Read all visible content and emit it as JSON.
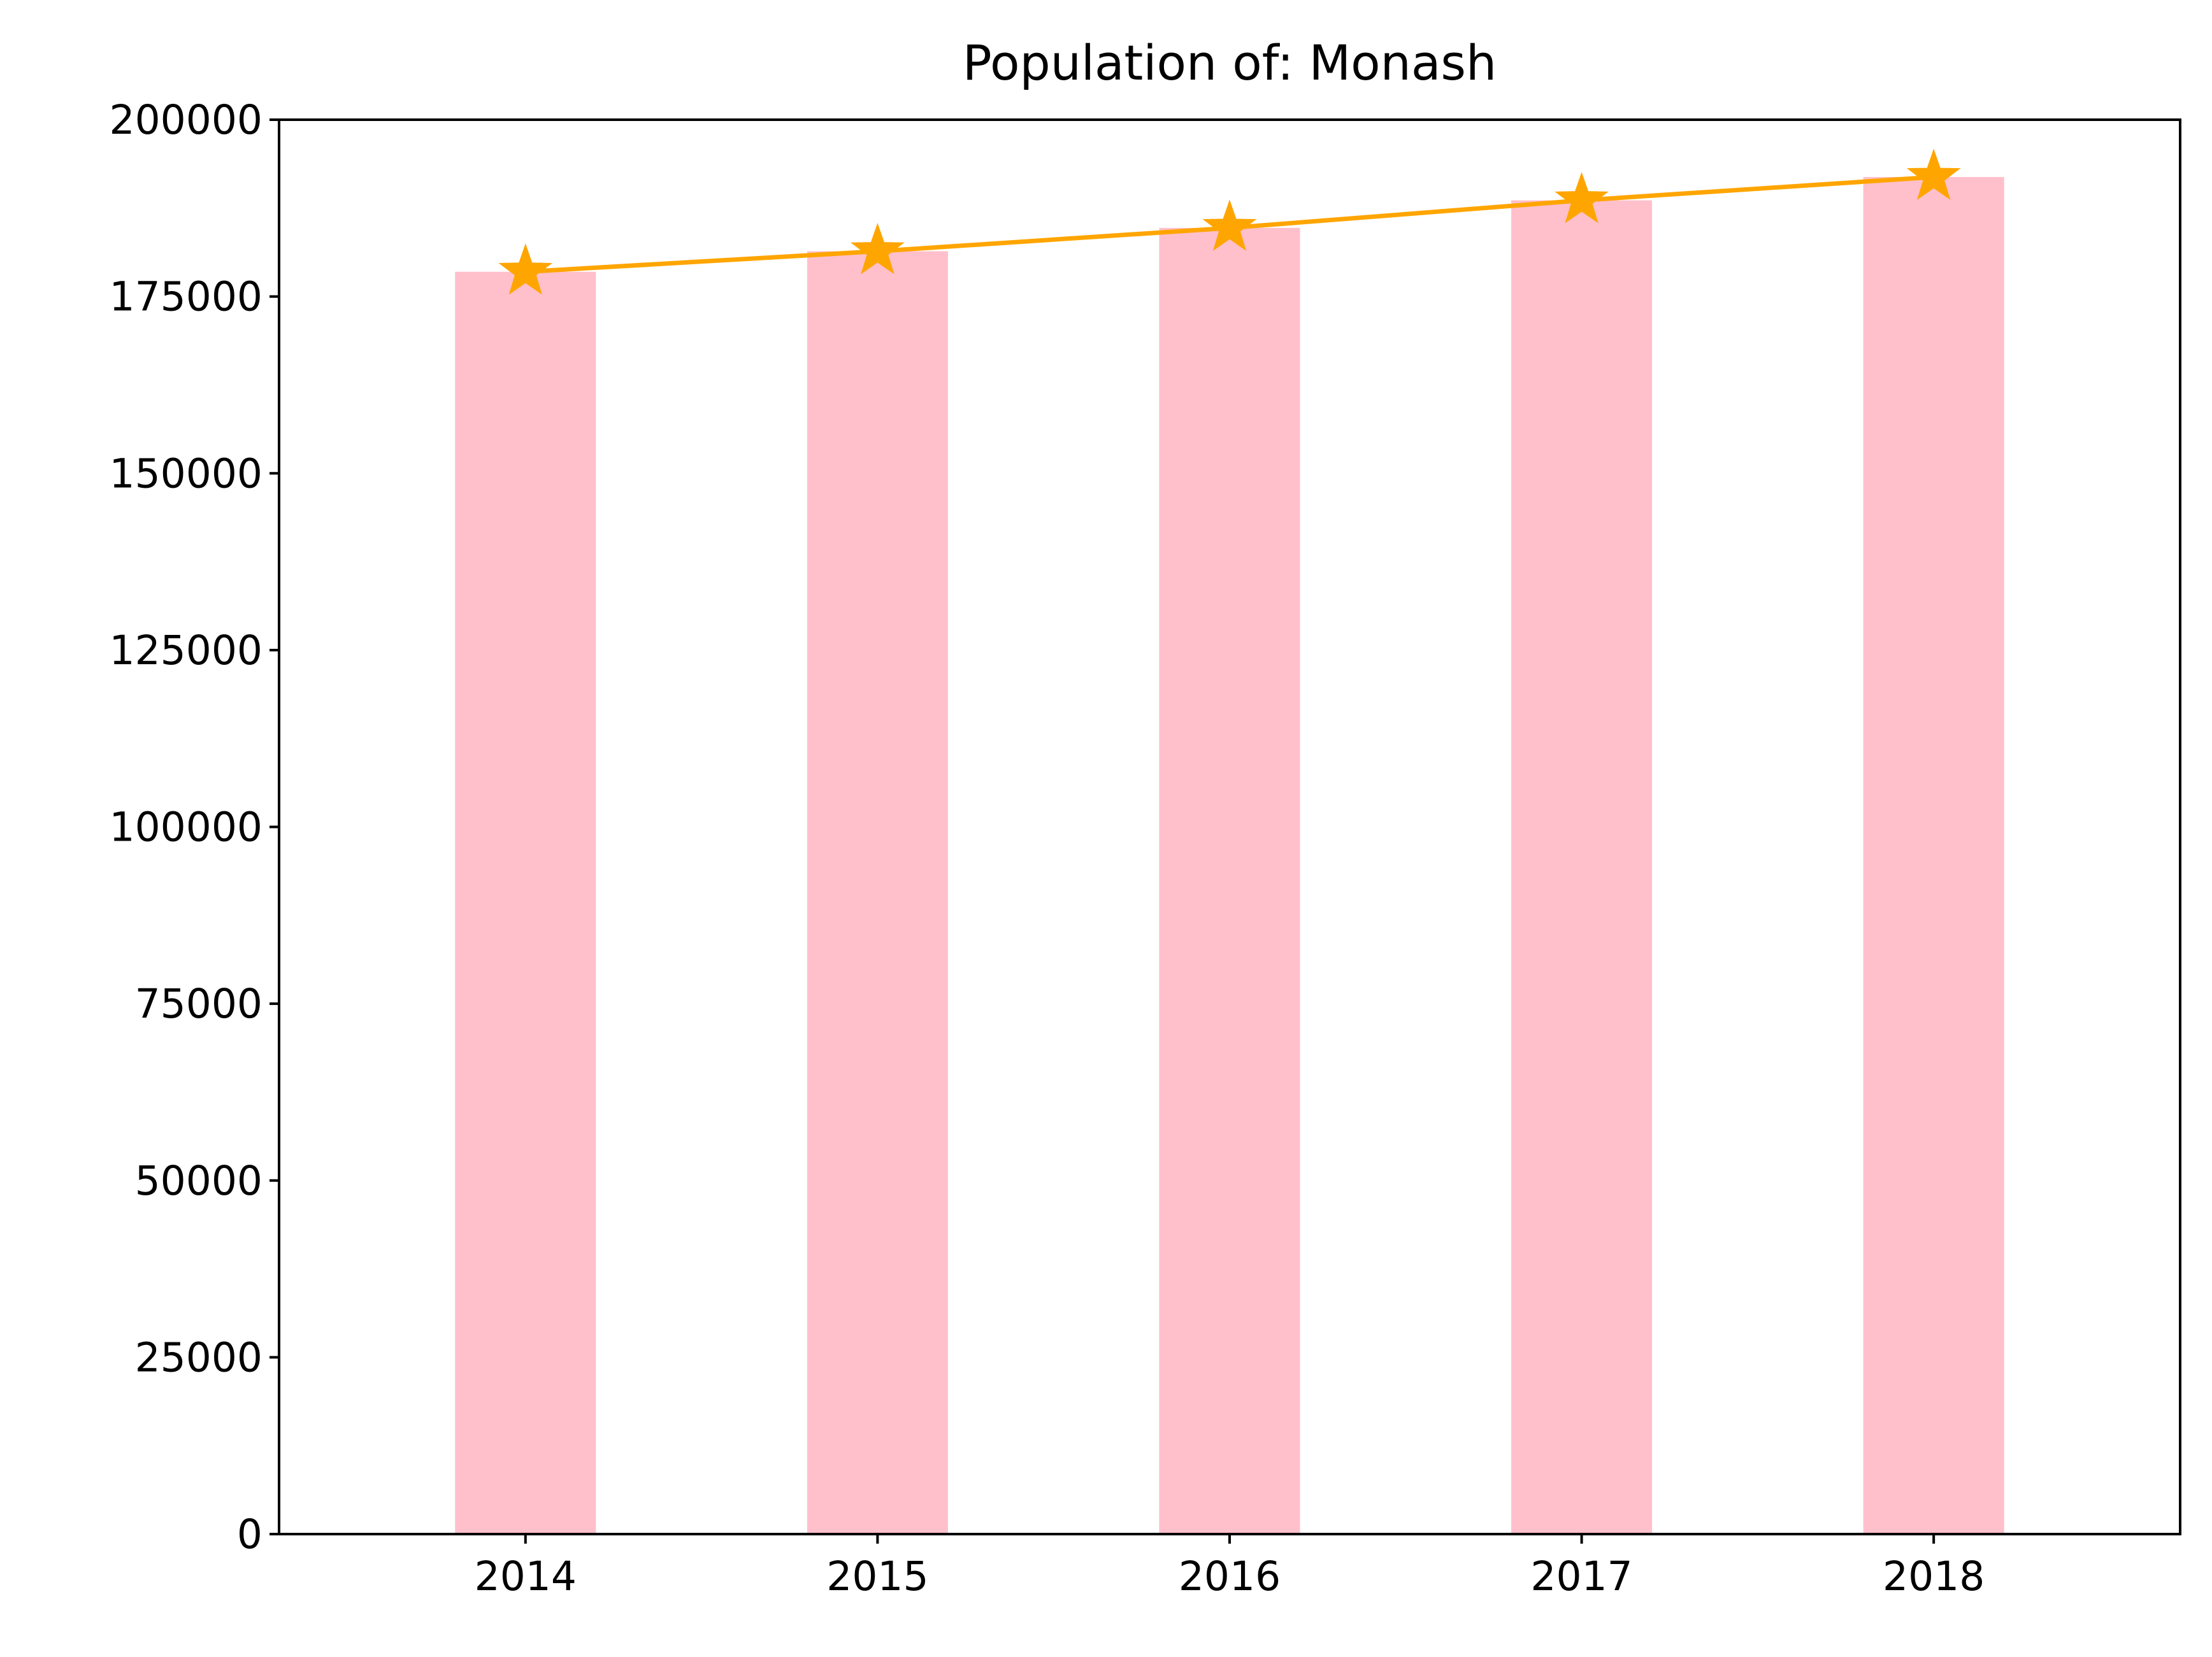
{
  "chart_data": {
    "type": "bar",
    "title": "Population of: Monash",
    "xlabel": "",
    "ylabel": "",
    "categories": [
      "2014",
      "2015",
      "2016",
      "2017",
      "2018"
    ],
    "values": [
      178500,
      181400,
      184700,
      188600,
      191900
    ],
    "line_values": [
      178500,
      181400,
      184700,
      188600,
      191900
    ],
    "ylim": [
      0,
      200000
    ],
    "yticks": [
      0,
      25000,
      50000,
      75000,
      100000,
      125000,
      150000,
      175000,
      200000
    ],
    "ytick_labels": [
      "0",
      "25000",
      "50000",
      "75000",
      "100000",
      "125000",
      "150000",
      "175000",
      "200000"
    ],
    "grid": false,
    "legend": "none",
    "bar_color": "#ffc0cb",
    "line_color": "#ffa500",
    "line_marker": "star"
  }
}
